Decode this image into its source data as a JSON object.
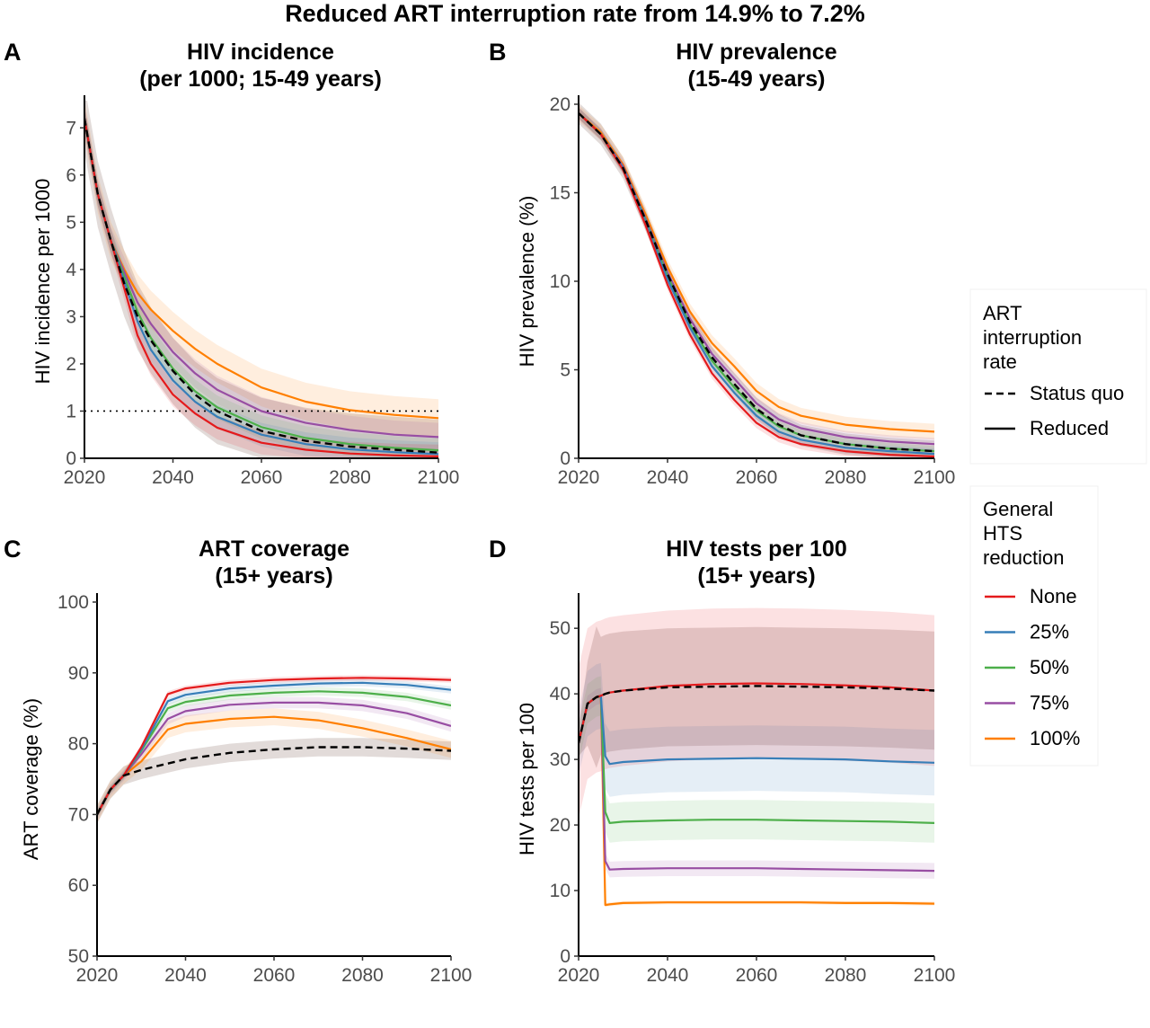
{
  "figure": {
    "title": "Reduced ART interruption rate from 14.9% to 7.2%"
  },
  "legend_art": {
    "title_lines": [
      "ART",
      "interruption",
      "rate"
    ],
    "items": [
      {
        "label": "Status quo",
        "style": "dashed"
      },
      {
        "label": "Reduced",
        "style": "solid"
      }
    ]
  },
  "legend_hts": {
    "title_lines": [
      "General",
      "HTS",
      "reduction"
    ],
    "items": [
      {
        "label": "None",
        "color": "#e41a1c"
      },
      {
        "label": "25%",
        "color": "#377eb8"
      },
      {
        "label": "50%",
        "color": "#4daf4a"
      },
      {
        "label": "75%",
        "color": "#984ea3"
      },
      {
        "label": "100%",
        "color": "#ff7f00"
      }
    ]
  },
  "colors": {
    "None": "#e41a1c",
    "25%": "#377eb8",
    "50%": "#4daf4a",
    "75%": "#984ea3",
    "100%": "#ff7f00",
    "status_quo": "#000000"
  },
  "chart_data": [
    {
      "type": "line",
      "letter": "A",
      "title_lines": [
        "HIV incidence",
        "(per 1000; 15-49 years)"
      ],
      "ylabel": "HIV incidence per 1000",
      "xlim": [
        2020,
        2100
      ],
      "ylim": [
        0,
        7.5
      ],
      "xticks": [
        2020,
        2040,
        2060,
        2080,
        2100
      ],
      "yticks": [
        0,
        1,
        2,
        3,
        4,
        5,
        6,
        7
      ],
      "reference_line": {
        "y": 1,
        "style": "dotted"
      },
      "x": [
        2020,
        2023,
        2026,
        2029,
        2032,
        2035,
        2040,
        2045,
        2050,
        2060,
        2070,
        2080,
        2090,
        2100
      ],
      "series": [
        {
          "key": "None",
          "values": [
            7.2,
            5.6,
            4.6,
            3.6,
            2.6,
            2.0,
            1.35,
            0.95,
            0.65,
            0.33,
            0.18,
            0.1,
            0.06,
            0.04
          ],
          "band": 0.25
        },
        {
          "key": "25%",
          "values": [
            7.2,
            5.6,
            4.6,
            3.75,
            2.9,
            2.3,
            1.65,
            1.2,
            0.88,
            0.5,
            0.3,
            0.19,
            0.13,
            0.09
          ],
          "band": 0.25
        },
        {
          "key": "50%",
          "values": [
            7.2,
            5.6,
            4.6,
            3.85,
            3.1,
            2.55,
            1.9,
            1.42,
            1.08,
            0.66,
            0.43,
            0.3,
            0.22,
            0.17
          ],
          "band": 0.25
        },
        {
          "key": "75%",
          "values": [
            7.2,
            5.6,
            4.6,
            3.95,
            3.3,
            2.85,
            2.25,
            1.8,
            1.45,
            1.0,
            0.75,
            0.6,
            0.5,
            0.45
          ],
          "band": 0.3
        },
        {
          "key": "100%",
          "values": [
            7.2,
            5.6,
            4.6,
            4.0,
            3.5,
            3.15,
            2.7,
            2.32,
            2.0,
            1.5,
            1.2,
            1.02,
            0.92,
            0.85
          ],
          "band": 0.4
        },
        {
          "key": "status_quo",
          "values": [
            7.2,
            5.6,
            4.6,
            3.7,
            3.0,
            2.5,
            1.85,
            1.35,
            1.0,
            0.58,
            0.37,
            0.25,
            0.18,
            0.12
          ],
          "band": 0.7,
          "band_color": "#7a5c50"
        }
      ]
    },
    {
      "type": "line",
      "letter": "B",
      "title_lines": [
        "HIV prevalence",
        "(15-49 years)"
      ],
      "ylabel": "HIV prevalence (%)",
      "xlim": [
        2020,
        2100
      ],
      "ylim": [
        0,
        20
      ],
      "xticks": [
        2020,
        2040,
        2060,
        2080,
        2100
      ],
      "yticks": [
        0,
        5,
        10,
        15,
        20
      ],
      "x": [
        2020,
        2025,
        2030,
        2035,
        2040,
        2045,
        2050,
        2055,
        2060,
        2065,
        2070,
        2080,
        2090,
        2100
      ],
      "series": [
        {
          "key": "None",
          "values": [
            19.5,
            18.3,
            16.3,
            13.2,
            9.8,
            7.0,
            4.8,
            3.3,
            2.0,
            1.2,
            0.8,
            0.4,
            0.2,
            0.1
          ],
          "band": 0.3
        },
        {
          "key": "25%",
          "values": [
            19.5,
            18.3,
            16.4,
            13.4,
            10.1,
            7.4,
            5.2,
            3.7,
            2.4,
            1.5,
            1.05,
            0.6,
            0.4,
            0.25
          ],
          "band": 0.3
        },
        {
          "key": "50%",
          "values": [
            19.5,
            18.3,
            16.4,
            13.5,
            10.3,
            7.6,
            5.5,
            4.0,
            2.7,
            1.8,
            1.3,
            0.8,
            0.55,
            0.4
          ],
          "band": 0.3
        },
        {
          "key": "75%",
          "values": [
            19.5,
            18.3,
            16.5,
            13.6,
            10.5,
            7.9,
            5.9,
            4.5,
            3.1,
            2.2,
            1.7,
            1.2,
            0.95,
            0.8
          ],
          "band": 0.35
        },
        {
          "key": "100%",
          "values": [
            19.5,
            18.4,
            16.6,
            13.8,
            10.8,
            8.3,
            6.5,
            5.2,
            3.8,
            2.9,
            2.4,
            1.9,
            1.65,
            1.5
          ],
          "band": 0.45
        },
        {
          "key": "status_quo",
          "values": [
            19.5,
            18.3,
            16.4,
            13.5,
            10.4,
            7.7,
            5.7,
            4.2,
            2.8,
            1.9,
            1.3,
            0.8,
            0.55,
            0.4
          ],
          "band": 0.6,
          "band_color": "#7a5c50"
        }
      ]
    },
    {
      "type": "line",
      "letter": "C",
      "title_lines": [
        "ART coverage",
        "(15+ years)"
      ],
      "ylabel": "ART coverage (%)",
      "xlim": [
        2020,
        2100
      ],
      "ylim": [
        50,
        100
      ],
      "xticks": [
        2020,
        2040,
        2060,
        2080,
        2100
      ],
      "yticks": [
        50,
        60,
        70,
        80,
        90,
        100
      ],
      "x": [
        2020,
        2023,
        2026,
        2030,
        2036,
        2040,
        2050,
        2060,
        2070,
        2080,
        2090,
        2100
      ],
      "series": [
        {
          "key": "None",
          "values": [
            70,
            73.5,
            75.5,
            79.5,
            87.0,
            87.8,
            88.6,
            89.0,
            89.2,
            89.3,
            89.2,
            89.0
          ],
          "band": 0.4
        },
        {
          "key": "25%",
          "values": [
            70,
            73.5,
            75.5,
            79.2,
            86.0,
            86.9,
            87.8,
            88.2,
            88.5,
            88.6,
            88.3,
            87.6
          ],
          "band": 0.5
        },
        {
          "key": "50%",
          "values": [
            70,
            73.5,
            75.5,
            79.0,
            85.0,
            85.9,
            86.8,
            87.2,
            87.4,
            87.2,
            86.6,
            85.4
          ],
          "band": 0.6
        },
        {
          "key": "75%",
          "values": [
            70,
            73.5,
            75.5,
            78.5,
            83.5,
            84.6,
            85.5,
            85.8,
            85.8,
            85.4,
            84.3,
            82.5
          ],
          "band": 0.8
        },
        {
          "key": "100%",
          "values": [
            70,
            73.5,
            75.5,
            77.5,
            82.0,
            82.8,
            83.5,
            83.8,
            83.3,
            82.2,
            80.8,
            79.2
          ],
          "band": 1.2
        },
        {
          "key": "status_quo",
          "values": [
            70,
            73.5,
            75.5,
            76.3,
            77.2,
            77.8,
            78.7,
            79.2,
            79.5,
            79.5,
            79.3,
            79.0
          ],
          "band": 1.3,
          "band_color": "#7a5c50"
        }
      ]
    },
    {
      "type": "line",
      "letter": "D",
      "title_lines": [
        "HIV tests per 100",
        "(15+ years)"
      ],
      "ylabel": "HIV tests per 100",
      "xlim": [
        2020,
        2100
      ],
      "ylim": [
        0,
        54
      ],
      "xticks": [
        2020,
        2040,
        2060,
        2080,
        2100
      ],
      "yticks": [
        0,
        10,
        20,
        30,
        40,
        50
      ],
      "x": [
        2020,
        2022,
        2024,
        2025,
        2026,
        2027,
        2030,
        2040,
        2050,
        2060,
        2070,
        2080,
        2090,
        2100
      ],
      "series": [
        {
          "key": "None",
          "values": [
            32.5,
            38.5,
            39.5,
            39.7,
            40.0,
            40.2,
            40.5,
            41.2,
            41.5,
            41.6,
            41.5,
            41.3,
            41.0,
            40.5
          ],
          "band": 11.5
        },
        {
          "key": "25%",
          "values": [
            32.5,
            38.5,
            39.5,
            39.7,
            30.5,
            29.3,
            29.6,
            30.0,
            30.1,
            30.2,
            30.1,
            30.0,
            29.7,
            29.5
          ],
          "band": 5.0
        },
        {
          "key": "50%",
          "values": [
            32.5,
            38.5,
            39.5,
            39.7,
            22.0,
            20.3,
            20.5,
            20.7,
            20.8,
            20.8,
            20.7,
            20.6,
            20.5,
            20.3
          ],
          "band": 3.0
        },
        {
          "key": "75%",
          "values": [
            32.5,
            38.5,
            39.5,
            39.7,
            14.5,
            13.2,
            13.3,
            13.4,
            13.4,
            13.4,
            13.3,
            13.2,
            13.1,
            13.0
          ],
          "band": 1.2
        },
        {
          "key": "100%",
          "values": [
            32.5,
            38.5,
            39.5,
            39.7,
            7.8,
            7.9,
            8.1,
            8.2,
            8.2,
            8.2,
            8.2,
            8.1,
            8.1,
            8.0
          ],
          "band": 0.3
        },
        {
          "key": "status_quo",
          "values": [
            32.5,
            38.5,
            39.5,
            39.7,
            40.0,
            40.2,
            40.5,
            41.0,
            41.1,
            41.2,
            41.1,
            41.0,
            40.8,
            40.5
          ],
          "band": 9.0,
          "band_color": "#7a5c50"
        }
      ]
    }
  ]
}
